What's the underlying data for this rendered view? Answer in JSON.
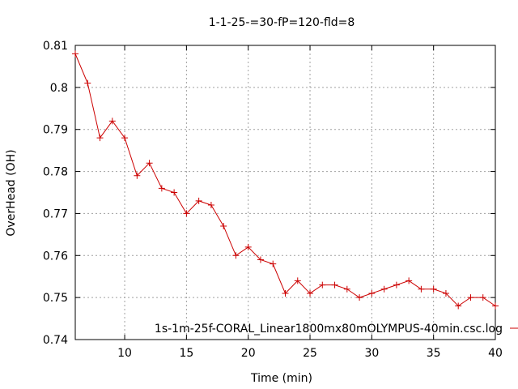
{
  "chart_data": {
    "type": "line",
    "title": "1-1-25-=30-fP=120-fld=8",
    "xlabel": "Time (min)",
    "ylabel": "OverHead (OH)",
    "xlim": [
      6,
      40
    ],
    "ylim": [
      0.74,
      0.81
    ],
    "xticks": [
      10,
      15,
      20,
      25,
      30,
      35,
      40
    ],
    "yticks": [
      0.74,
      0.75,
      0.76,
      0.77,
      0.78,
      0.79,
      0.8,
      0.81
    ],
    "grid": true,
    "legend_position": "bottom-right",
    "series": [
      {
        "name": "1s-1m-25f-CORAL_Linear1800mx80mOLYMPUS-40min.csc.log",
        "color": "#cc0000",
        "marker": "plus",
        "x": [
          6,
          7,
          8,
          9,
          10,
          11,
          12,
          13,
          14,
          15,
          16,
          17,
          18,
          19,
          20,
          21,
          22,
          23,
          24,
          25,
          26,
          27,
          28,
          29,
          30,
          31,
          32,
          33,
          34,
          35,
          36,
          37,
          38,
          39,
          40
        ],
        "y": [
          0.808,
          0.801,
          0.788,
          0.792,
          0.788,
          0.779,
          0.782,
          0.776,
          0.775,
          0.77,
          0.773,
          0.772,
          0.767,
          0.76,
          0.762,
          0.759,
          0.758,
          0.751,
          0.754,
          0.751,
          0.753,
          0.753,
          0.752,
          0.75,
          0.751,
          0.752,
          0.753,
          0.754,
          0.752,
          0.752,
          0.751,
          0.748,
          0.75,
          0.75,
          0.748
        ]
      }
    ]
  }
}
